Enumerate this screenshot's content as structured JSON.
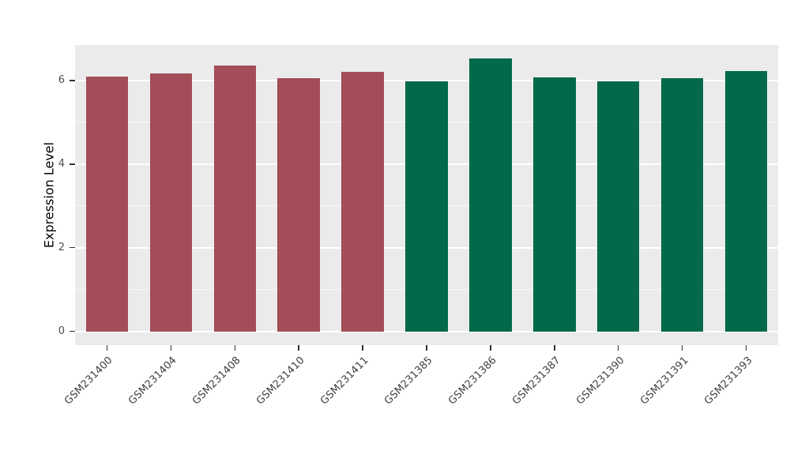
{
  "chart_data": {
    "type": "bar",
    "title": "",
    "xlabel": "",
    "ylabel": "Expression Level",
    "categories": [
      "GSM231400",
      "GSM231404",
      "GSM231408",
      "GSM231410",
      "GSM231411",
      "GSM231385",
      "GSM231386",
      "GSM231387",
      "GSM231390",
      "GSM231391",
      "GSM231393"
    ],
    "values": [
      6.1,
      6.17,
      6.35,
      6.05,
      6.2,
      5.98,
      6.52,
      6.08,
      5.98,
      6.05,
      6.22
    ],
    "colors": [
      "#A24D57",
      "#A24D57",
      "#A24D57",
      "#A24D57",
      "#A24D57",
      "#02694B",
      "#02694B",
      "#02694B",
      "#02694B",
      "#02694B",
      "#02694B"
    ],
    "group_colors": {
      "left-group": "#A24D57",
      "right-group": "#02694B"
    },
    "yticks": [
      0,
      2,
      4,
      6
    ],
    "minor_yticks": [
      1,
      3,
      5
    ],
    "ylim": [
      -0.33,
      6.85
    ],
    "panel_bg": "#EBEBEB",
    "grid_color": "#FFFFFF",
    "legend": "none",
    "grid": "on"
  }
}
